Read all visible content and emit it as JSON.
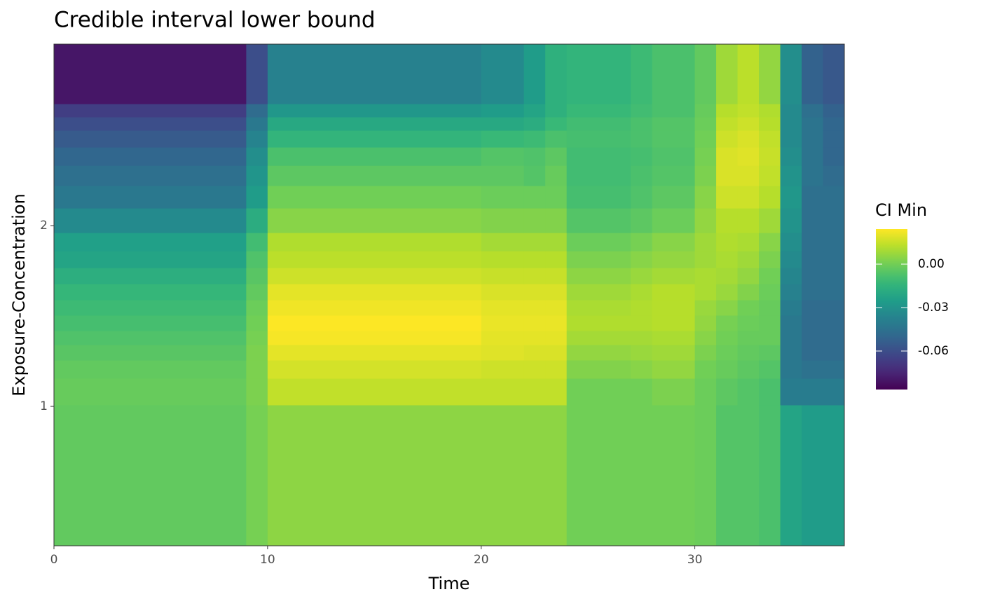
{
  "chart_data": {
    "type": "heatmap",
    "title": "Credible interval lower bound",
    "x_label": "Time",
    "y_label": "Exposure-Concentration",
    "xlim": [
      0,
      37
    ],
    "xticks": [
      0,
      10,
      20,
      30
    ],
    "ylim": [
      0.229,
      3.004
    ],
    "yticks": [
      1,
      2
    ],
    "xbins": [
      0,
      9,
      10,
      20,
      22,
      23,
      24,
      27,
      28,
      30,
      31,
      32,
      33,
      34,
      35,
      36,
      37
    ],
    "ybins": [
      0.229,
      1.008,
      1.155,
      1.256,
      1.341,
      1.419,
      1.504,
      1.589,
      1.678,
      1.767,
      1.86,
      1.961,
      2.097,
      2.221,
      2.333,
      2.434,
      2.527,
      2.601,
      2.674,
      3.004
    ],
    "z": [
      [
        -0.003,
        0.001,
        0.005,
        0.005,
        0.005,
        0.005,
        0.0,
        0.0,
        0.0,
        -0.001,
        -0.006,
        -0.006,
        -0.008,
        -0.022,
        -0.026,
        -0.026
      ],
      [
        -0.002,
        0.002,
        0.014,
        0.014,
        0.014,
        0.014,
        0.0,
        0.0,
        0.002,
        -0.001,
        -0.004,
        -0.006,
        -0.008,
        -0.04,
        -0.04,
        -0.04
      ],
      [
        -0.003,
        0.002,
        0.017,
        0.016,
        0.016,
        0.016,
        0.003,
        0.004,
        0.006,
        0.0,
        -0.002,
        -0.004,
        -0.006,
        -0.042,
        -0.045,
        -0.045
      ],
      [
        -0.005,
        0.002,
        0.02,
        0.019,
        0.018,
        0.018,
        0.006,
        0.007,
        0.008,
        0.002,
        -0.001,
        -0.003,
        -0.004,
        -0.042,
        -0.048,
        -0.048
      ],
      [
        -0.007,
        0.001,
        0.023,
        0.02,
        0.02,
        0.02,
        0.009,
        0.009,
        0.01,
        0.004,
        0.0,
        -0.002,
        -0.002,
        -0.042,
        -0.048,
        -0.048
      ],
      [
        -0.009,
        0.0,
        0.024,
        0.021,
        0.021,
        0.021,
        0.011,
        0.011,
        0.012,
        0.006,
        0.001,
        -0.001,
        -0.002,
        -0.042,
        -0.048,
        -0.048
      ],
      [
        -0.011,
        -0.001,
        0.022,
        0.02,
        0.02,
        0.02,
        0.01,
        0.011,
        0.012,
        0.007,
        0.004,
        0.0,
        -0.002,
        -0.04,
        -0.048,
        -0.048
      ],
      [
        -0.013,
        -0.003,
        0.02,
        0.018,
        0.018,
        0.018,
        0.008,
        0.01,
        0.012,
        0.01,
        0.007,
        0.003,
        -0.001,
        -0.038,
        -0.046,
        -0.046
      ],
      [
        -0.017,
        -0.005,
        0.016,
        0.015,
        0.015,
        0.015,
        0.005,
        0.007,
        0.009,
        0.01,
        0.009,
        0.006,
        0.0,
        -0.036,
        -0.046,
        -0.046
      ],
      [
        -0.022,
        -0.007,
        0.013,
        0.012,
        0.012,
        0.012,
        0.002,
        0.004,
        0.006,
        0.008,
        0.01,
        0.008,
        0.002,
        -0.034,
        -0.046,
        -0.046
      ],
      [
        -0.024,
        -0.01,
        0.011,
        0.009,
        0.009,
        0.009,
        -0.001,
        0.001,
        0.004,
        0.008,
        0.011,
        0.01,
        0.004,
        -0.032,
        -0.046,
        -0.046
      ],
      [
        -0.034,
        -0.018,
        0.004,
        0.003,
        0.003,
        0.003,
        -0.006,
        -0.004,
        -0.001,
        0.006,
        0.012,
        0.012,
        0.008,
        -0.03,
        -0.046,
        -0.046
      ],
      [
        -0.042,
        -0.026,
        0.0,
        -0.001,
        -0.001,
        -0.001,
        -0.009,
        -0.007,
        -0.004,
        0.004,
        0.016,
        0.016,
        0.012,
        -0.028,
        -0.046,
        -0.046
      ],
      [
        -0.046,
        -0.029,
        -0.004,
        -0.004,
        -0.006,
        -0.002,
        -0.01,
        -0.008,
        -0.006,
        0.002,
        0.018,
        0.018,
        0.014,
        -0.03,
        -0.044,
        -0.048
      ],
      [
        -0.05,
        -0.032,
        -0.008,
        -0.006,
        -0.007,
        -0.004,
        -0.01,
        -0.009,
        -0.007,
        0.001,
        0.018,
        0.019,
        0.015,
        -0.032,
        -0.044,
        -0.05
      ],
      [
        -0.055,
        -0.037,
        -0.014,
        -0.012,
        -0.011,
        -0.008,
        -0.009,
        -0.008,
        -0.006,
        0.0,
        0.016,
        0.018,
        0.014,
        -0.034,
        -0.044,
        -0.05
      ],
      [
        -0.06,
        -0.042,
        -0.02,
        -0.02,
        -0.018,
        -0.012,
        -0.01,
        -0.008,
        -0.006,
        -0.001,
        0.014,
        0.016,
        0.012,
        -0.034,
        -0.044,
        -0.05
      ],
      [
        -0.066,
        -0.048,
        -0.028,
        -0.026,
        -0.022,
        -0.016,
        -0.012,
        -0.01,
        -0.008,
        -0.002,
        0.012,
        0.014,
        0.011,
        -0.034,
        -0.046,
        -0.052
      ],
      [
        -0.08,
        -0.06,
        -0.038,
        -0.034,
        -0.026,
        -0.016,
        -0.014,
        -0.011,
        -0.008,
        -0.003,
        0.008,
        0.013,
        0.006,
        -0.032,
        -0.052,
        -0.056
      ]
    ],
    "colorbar": {
      "title": "CI Min",
      "colormap": "viridis",
      "lim": [
        -0.0866,
        0.0242
      ],
      "ticks": [
        {
          "value": 0,
          "label": "0.00"
        },
        {
          "value": -0.03,
          "label": "-0.03"
        },
        {
          "value": -0.06,
          "label": "-0.06"
        }
      ]
    }
  }
}
